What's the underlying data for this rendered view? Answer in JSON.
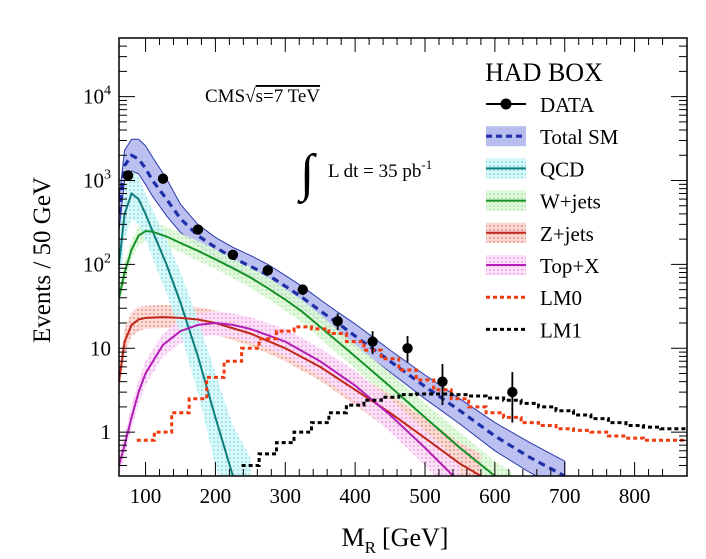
{
  "chart_data": {
    "type": "line",
    "title": "HAD BOX",
    "experiment_label": "CMS",
    "energy_label": "s=7 TeV",
    "lumi_label": "L dt = 35 pb",
    "lumi_exponent": "-1",
    "xlabel": "M",
    "xlabel_sub": "R",
    "xlabel_unit": "[GeV]",
    "ylabel": "Events / 50 GeV",
    "xlim": [
      62,
      875
    ],
    "ylim": [
      0.3,
      50000
    ],
    "yscale": "log",
    "x_ticks": [
      {
        "value": 100,
        "label": "100"
      },
      {
        "value": 200,
        "label": "200"
      },
      {
        "value": 300,
        "label": "300"
      },
      {
        "value": 400,
        "label": "400"
      },
      {
        "value": 500,
        "label": "500"
      },
      {
        "value": 600,
        "label": "600"
      },
      {
        "value": 700,
        "label": "700"
      },
      {
        "value": 800,
        "label": "800"
      }
    ],
    "y_ticks": [
      {
        "value": 1,
        "label": "1",
        "exp": ""
      },
      {
        "value": 10,
        "label": "10",
        "exp": ""
      },
      {
        "value": 100,
        "label": "10",
        "exp": "2"
      },
      {
        "value": 1000,
        "label": "10",
        "exp": "3"
      },
      {
        "value": 10000,
        "label": "10",
        "exp": "4"
      }
    ],
    "legend": [
      {
        "key": "data",
        "label": "DATA",
        "color": "#000000",
        "style": "marker"
      },
      {
        "key": "total_sm",
        "label": "Total SM",
        "color": "#1f2fa8",
        "style": "dashed-band",
        "band_color": "#b8bdf0"
      },
      {
        "key": "qcd",
        "label": "QCD",
        "color": "#0f7d7d",
        "style": "band",
        "band_color": "#8ee8ec"
      },
      {
        "key": "wjets",
        "label": "W+jets",
        "color": "#17912a",
        "style": "band",
        "band_color": "#b7f0b0"
      },
      {
        "key": "zjets",
        "label": "Z+jets",
        "color": "#c0281b",
        "style": "band",
        "band_color": "#f0a8a0"
      },
      {
        "key": "topx",
        "label": "Top+X",
        "color": "#b21fb5",
        "style": "band",
        "band_color": "#f3b5ef"
      },
      {
        "key": "lm0",
        "label": "LM0",
        "color": "#f03a10",
        "style": "dotted"
      },
      {
        "key": "lm1",
        "label": "LM1",
        "color": "#000000",
        "style": "dotted"
      }
    ],
    "series": [
      {
        "name": "Total SM",
        "key": "total_sm",
        "x": [
          62,
          70,
          80,
          90,
          100,
          110,
          130,
          150,
          175,
          200,
          225,
          250,
          275,
          300,
          325,
          350,
          375,
          400,
          450,
          500,
          550,
          600,
          650,
          700
        ],
        "y": [
          400,
          1500,
          2000,
          1800,
          1400,
          1000,
          600,
          350,
          220,
          160,
          120,
          95,
          75,
          55,
          40,
          28,
          20,
          14,
          7,
          3.5,
          1.8,
          0.9,
          0.5,
          0.3
        ],
        "band_lo": [
          250,
          1000,
          1300,
          1200,
          900,
          650,
          380,
          240,
          170,
          125,
          95,
          75,
          58,
          42,
          30,
          21,
          15,
          10.5,
          5.2,
          2.5,
          1.25,
          0.6,
          0.33,
          0.2
        ],
        "band_hi": [
          600,
          2300,
          3100,
          3100,
          2600,
          1900,
          1050,
          520,
          300,
          210,
          160,
          128,
          100,
          74,
          54,
          38,
          27,
          19.5,
          9.5,
          4.8,
          2.5,
          1.3,
          0.75,
          0.45
        ]
      },
      {
        "name": "QCD",
        "key": "qcd",
        "x": [
          62,
          70,
          80,
          90,
          100,
          110,
          130,
          150,
          175,
          200,
          225,
          250
        ],
        "y": [
          100,
          400,
          700,
          600,
          400,
          250,
          100,
          35,
          8,
          1.5,
          0.3,
          0.15
        ],
        "band_lo": [
          50,
          200,
          350,
          300,
          200,
          120,
          45,
          15,
          3,
          0.4,
          0.1,
          0.1
        ],
        "band_hi": [
          200,
          800,
          1300,
          1100,
          700,
          450,
          200,
          80,
          22,
          5,
          1.2,
          0.5
        ]
      },
      {
        "name": "W+jets",
        "key": "wjets",
        "x": [
          62,
          70,
          80,
          90,
          100,
          110,
          130,
          150,
          175,
          200,
          225,
          250,
          275,
          300,
          325,
          350,
          375,
          400,
          450,
          500,
          550,
          600,
          625
        ],
        "y": [
          40,
          80,
          150,
          220,
          250,
          245,
          215,
          180,
          145,
          115,
          90,
          70,
          52,
          38,
          27,
          18,
          12,
          8,
          3.5,
          1.5,
          0.65,
          0.3,
          0.22
        ],
        "band_lo": [
          30,
          60,
          115,
          170,
          190,
          185,
          165,
          140,
          110,
          88,
          68,
          53,
          39,
          28,
          20,
          13,
          8.6,
          5.7,
          2.4,
          1.0,
          0.43,
          0.2,
          0.15
        ],
        "band_hi": [
          53,
          105,
          195,
          290,
          330,
          320,
          280,
          235,
          190,
          150,
          118,
          92,
          70,
          51,
          37,
          25,
          16.5,
          11.2,
          5.1,
          2.2,
          1.0,
          0.45,
          0.33
        ]
      },
      {
        "name": "Z+jets",
        "key": "zjets",
        "x": [
          62,
          70,
          80,
          90,
          100,
          125,
          150,
          175,
          200,
          250,
          300,
          350,
          400,
          450,
          500,
          550,
          580
        ],
        "y": [
          4,
          12,
          19,
          22,
          23,
          23.5,
          23,
          22,
          20,
          15,
          10,
          6,
          3.2,
          1.7,
          0.85,
          0.42,
          0.3
        ],
        "band_lo": [
          3,
          8.5,
          14,
          16,
          17,
          17.5,
          17,
          16,
          14.5,
          10.8,
          7,
          4.1,
          2.1,
          1.05,
          0.5,
          0.24,
          0.17
        ],
        "band_hi": [
          5.5,
          17,
          27,
          31,
          32,
          33,
          32,
          31,
          28,
          21.5,
          15,
          9,
          5,
          2.8,
          1.45,
          0.75,
          0.55
        ]
      },
      {
        "name": "Top+X",
        "key": "topx",
        "x": [
          62,
          70,
          80,
          90,
          100,
          125,
          150,
          175,
          200,
          225,
          250,
          300,
          350,
          400,
          450,
          500,
          550
        ],
        "y": [
          0.4,
          0.7,
          1.5,
          3,
          5,
          11,
          16,
          19,
          20,
          19,
          17,
          12,
          7,
          3.6,
          1.6,
          0.65,
          0.25
        ],
        "band_lo": [
          0.3,
          0.5,
          1.1,
          2.2,
          3.6,
          8,
          11.5,
          13.5,
          14.5,
          13.5,
          12,
          8.2,
          4.7,
          2.3,
          1.0,
          0.4,
          0.15
        ],
        "band_hi": [
          0.55,
          0.95,
          2.1,
          4.2,
          7,
          15,
          22,
          26,
          27.5,
          26,
          23.5,
          17,
          10,
          5.4,
          2.5,
          1.05,
          0.42
        ]
      },
      {
        "name": "LM0",
        "key": "lm0",
        "x": [
          100,
          125,
          150,
          175,
          200,
          225,
          250,
          275,
          300,
          325,
          350,
          375,
          400,
          425,
          450,
          475,
          500,
          525,
          550,
          575,
          600,
          625,
          650,
          675,
          700,
          725,
          750,
          775,
          800,
          825,
          850,
          875
        ],
        "y": [
          0.8,
          1.0,
          1.7,
          2.5,
          4.5,
          7,
          10,
          13,
          16,
          18,
          17,
          15,
          12,
          9.5,
          7.5,
          5.5,
          4.2,
          3.2,
          2.5,
          2.0,
          1.7,
          1.5,
          1.3,
          1.2,
          1.1,
          1.05,
          1.0,
          0.9,
          0.85,
          0.8,
          0.8,
          0.8
        ]
      },
      {
        "name": "LM1",
        "key": "lm1",
        "x": [
          250,
          275,
          300,
          325,
          350,
          375,
          400,
          425,
          450,
          475,
          500,
          525,
          550,
          575,
          600,
          625,
          650,
          675,
          700,
          725,
          750,
          775,
          800,
          825,
          850,
          875
        ],
        "y": [
          0.4,
          0.55,
          0.75,
          1.0,
          1.3,
          1.7,
          2.1,
          2.4,
          2.6,
          2.8,
          2.85,
          2.85,
          2.8,
          2.7,
          2.55,
          2.4,
          2.2,
          2.0,
          1.8,
          1.6,
          1.45,
          1.3,
          1.2,
          1.15,
          1.1,
          1.1
        ]
      }
    ],
    "data_points": [
      {
        "x": 75,
        "y": 1150,
        "err_lo": 1115,
        "err_hi": 1185
      },
      {
        "x": 125,
        "y": 1050,
        "err_lo": 1018,
        "err_hi": 1082
      },
      {
        "x": 175,
        "y": 260,
        "err_lo": 244,
        "err_hi": 276
      },
      {
        "x": 225,
        "y": 130,
        "err_lo": 119,
        "err_hi": 141
      },
      {
        "x": 275,
        "y": 85,
        "err_lo": 76,
        "err_hi": 94
      },
      {
        "x": 325,
        "y": 50,
        "err_lo": 43,
        "err_hi": 57
      },
      {
        "x": 375,
        "y": 21,
        "err_lo": 16.5,
        "err_hi": 26
      },
      {
        "x": 425,
        "y": 12,
        "err_lo": 8.5,
        "err_hi": 16
      },
      {
        "x": 475,
        "y": 10,
        "err_lo": 6.8,
        "err_hi": 14
      },
      {
        "x": 525,
        "y": 4,
        "err_lo": 2.1,
        "err_hi": 6.5
      },
      {
        "x": 625,
        "y": 3,
        "err_lo": 1.3,
        "err_hi": 5.2
      }
    ]
  }
}
